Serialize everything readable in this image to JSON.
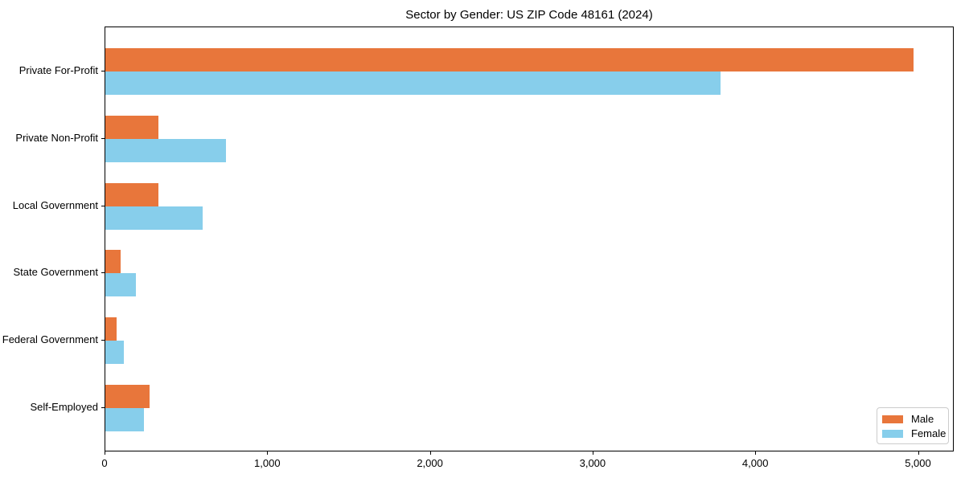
{
  "title": "Sector by Gender: US ZIP Code 48161 (2024)",
  "colors": {
    "male": "#e8763b",
    "female": "#87ceeb",
    "axis": "#000000",
    "legend_border": "#cccccc",
    "background": "#ffffff"
  },
  "chart_data": {
    "type": "bar",
    "orientation": "horizontal",
    "title": "Sector by Gender: US ZIP Code 48161 (2024)",
    "categories": [
      "Private For-Profit",
      "Private Non-Profit",
      "Local Government",
      "State Government",
      "Federal Government",
      "Self-Employed"
    ],
    "series": [
      {
        "name": "Male",
        "color": "#e8763b",
        "values": [
          4970,
          325,
          325,
          95,
          70,
          270
        ]
      },
      {
        "name": "Female",
        "color": "#87ceeb",
        "values": [
          3780,
          740,
          600,
          190,
          115,
          235
        ]
      }
    ],
    "xlabel": "",
    "ylabel": "",
    "xlim": [
      0,
      5220
    ],
    "xticks": [
      0,
      1000,
      2000,
      3000,
      4000,
      5000
    ],
    "xtick_labels": [
      "0",
      "1,000",
      "2,000",
      "3,000",
      "4,000",
      "5,000"
    ],
    "legend_position": "lower right",
    "grid": false
  },
  "legend": {
    "items": [
      {
        "label": "Male",
        "color": "#e8763b"
      },
      {
        "label": "Female",
        "color": "#87ceeb"
      }
    ]
  }
}
